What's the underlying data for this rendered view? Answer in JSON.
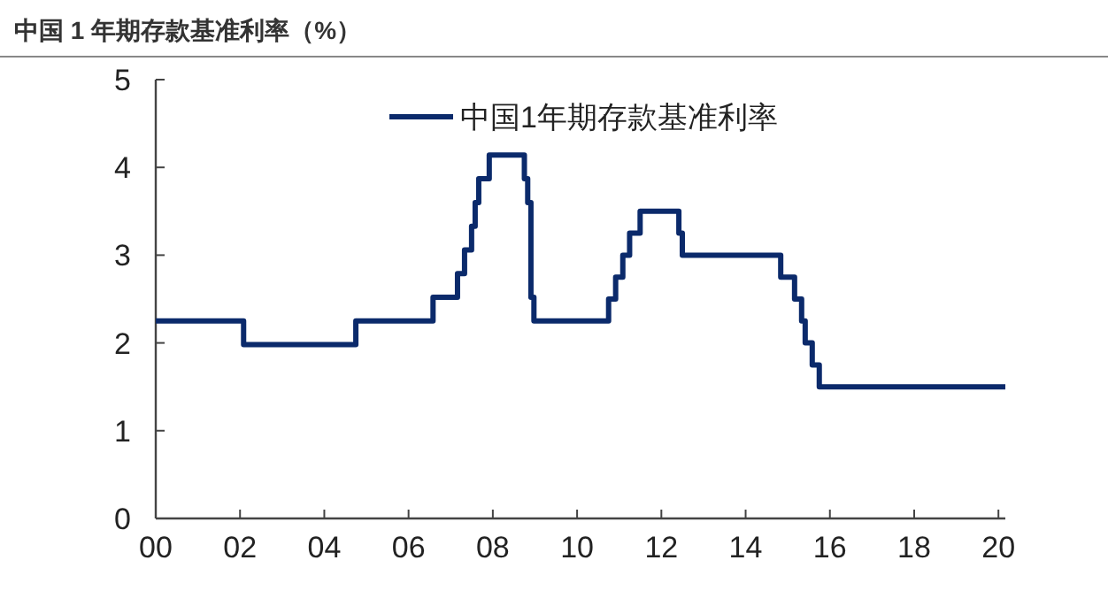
{
  "chart_data": {
    "type": "step",
    "title": "中国 1 年期存款基准利率（%）",
    "series": [
      {
        "name": "中国1年期存款基准利率",
        "color": "#0b2a6b",
        "x": [
          "2000-01",
          "2002-02",
          "2004-10",
          "2006-08",
          "2007-03",
          "2007-05",
          "2007-07",
          "2007-08",
          "2007-09",
          "2007-12",
          "2008-10",
          "2008-10-30",
          "2008-11-27",
          "2008-12-23",
          "2010-10",
          "2010-12",
          "2011-02",
          "2011-04",
          "2011-07",
          "2012-06",
          "2012-07",
          "2014-11",
          "2015-03",
          "2015-05",
          "2015-06",
          "2015-08",
          "2015-10",
          "2020-03"
        ],
        "values": [
          2.25,
          1.98,
          2.25,
          2.52,
          2.79,
          3.06,
          3.33,
          3.6,
          3.87,
          4.14,
          3.87,
          3.6,
          2.52,
          2.25,
          2.5,
          2.75,
          3.0,
          3.25,
          3.5,
          3.25,
          3.0,
          2.75,
          2.5,
          2.25,
          2.0,
          1.75,
          1.5,
          1.5
        ]
      }
    ],
    "xlim": [
      "2000-01",
      "2020-03"
    ],
    "xticks": [
      {
        "value": "2000",
        "label": "00"
      },
      {
        "value": "2002",
        "label": "02"
      },
      {
        "value": "2004",
        "label": "04"
      },
      {
        "value": "2006",
        "label": "06"
      },
      {
        "value": "2008",
        "label": "08"
      },
      {
        "value": "2010",
        "label": "10"
      },
      {
        "value": "2012",
        "label": "12"
      },
      {
        "value": "2014",
        "label": "14"
      },
      {
        "value": "2016",
        "label": "16"
      },
      {
        "value": "2018",
        "label": "18"
      },
      {
        "value": "2020",
        "label": "20"
      }
    ],
    "ylim": [
      0,
      5
    ],
    "yticks": [
      0,
      1,
      2,
      3,
      4,
      5
    ],
    "legend": "top",
    "grid": false
  }
}
